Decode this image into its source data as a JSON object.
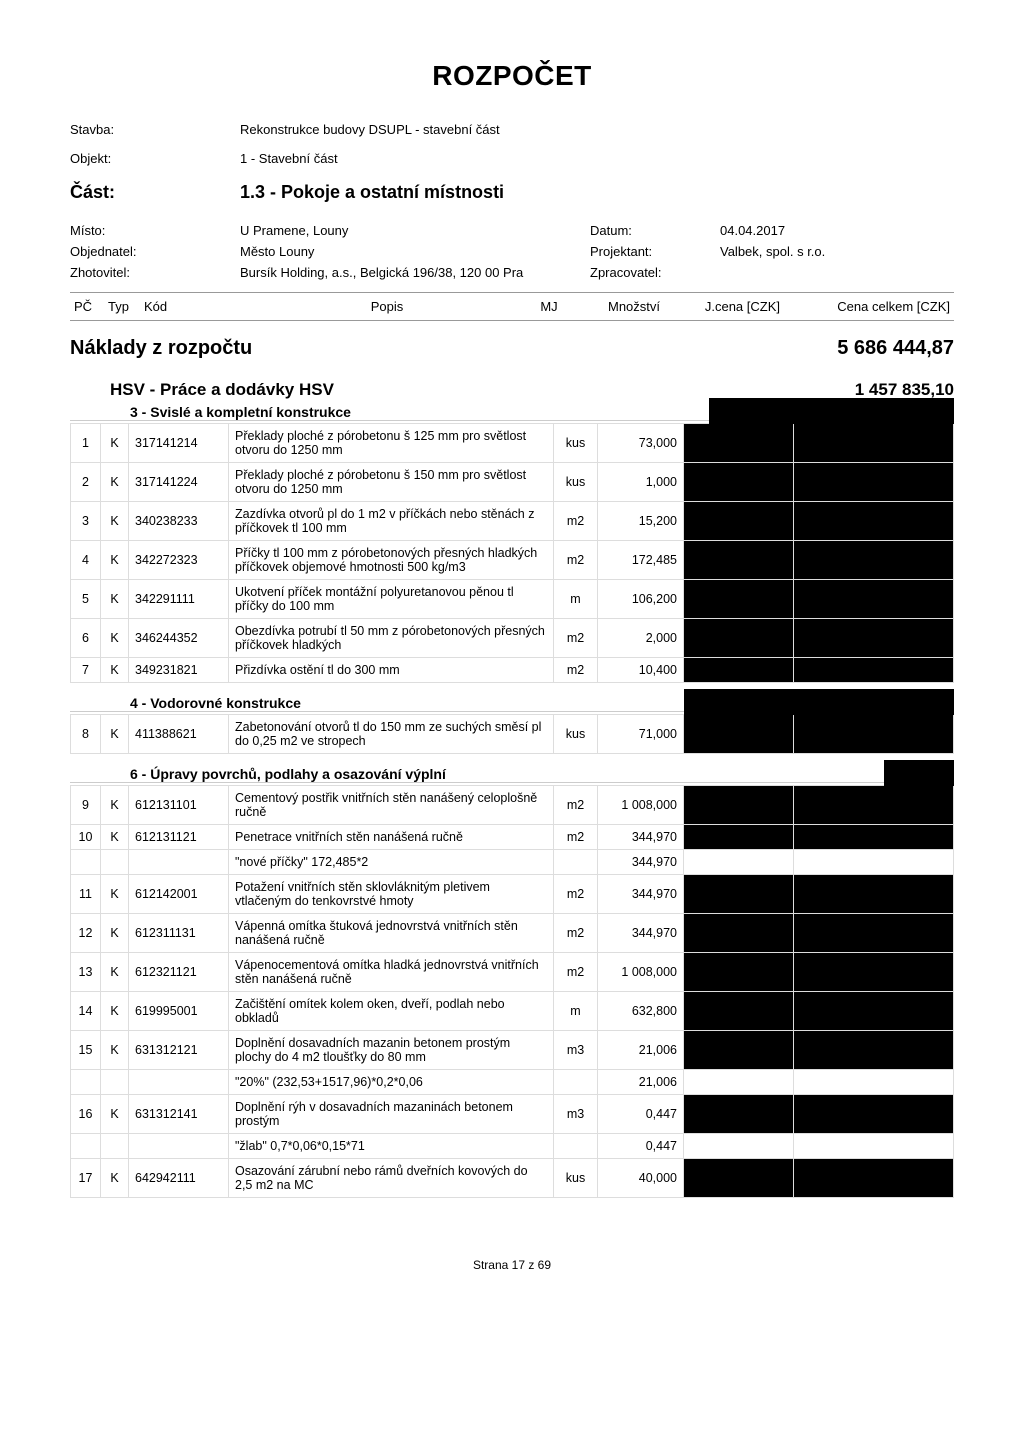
{
  "title": "ROZPOČET",
  "labels": {
    "stavba": "Stavba:",
    "objekt": "Objekt:",
    "cast": "Část:",
    "misto": "Místo:",
    "datum": "Datum:",
    "objednatel": "Objednatel:",
    "zhotovitel": "Zhotovitel:",
    "projektant": "Projektant:",
    "zpracovatel": "Zpracovatel:"
  },
  "header": {
    "stavba": "Rekonstrukce budovy DSUPL - stavební část",
    "objekt": "1 - Stavební část",
    "cast": "1.3 - Pokoje a ostatní místnosti",
    "misto": "U Pramene, Louny",
    "datum": "04.04.2017",
    "objednatel": "Město Louny",
    "projektant": "Valbek, spol. s r.o.",
    "zhotovitel": "Bursík Holding, a.s., Belgická 196/38, 120 00 Pra",
    "zpracovatel": ""
  },
  "columns": {
    "pc": "PČ",
    "typ": "Typ",
    "kod": "Kód",
    "popis": "Popis",
    "mj": "MJ",
    "mnozstvi": "Množství",
    "jcena": "J.cena [CZK]",
    "celkem": "Cena celkem [CZK]"
  },
  "grand": {
    "label": "Náklady z rozpočtu",
    "value": "5 686 444,87"
  },
  "hsv": {
    "label": "HSV - Práce a dodávky HSV",
    "value": "1 457 835,10"
  },
  "groups": [
    {
      "title": "3 - Svislé a kompletní konstrukce",
      "redact_width": 245,
      "rows": [
        {
          "pc": "1",
          "typ": "K",
          "kod": "317141214",
          "popis": "Překlady ploché z pórobetonu š 125 mm pro světlost otvoru do 1250 mm",
          "mj": "kus",
          "mn": "73,000"
        },
        {
          "pc": "2",
          "typ": "K",
          "kod": "317141224",
          "popis": "Překlady ploché z pórobetonu š 150 mm pro světlost otvoru do 1250 mm",
          "mj": "kus",
          "mn": "1,000"
        },
        {
          "pc": "3",
          "typ": "K",
          "kod": "340238233",
          "popis": "Zazdívka otvorů pl do 1 m2 v příčkách nebo stěnách z příčkovek tl 100 mm",
          "mj": "m2",
          "mn": "15,200"
        },
        {
          "pc": "4",
          "typ": "K",
          "kod": "342272323",
          "popis": "Příčky tl 100 mm z pórobetonových přesných hladkých příčkovek objemové hmotnosti 500 kg/m3",
          "mj": "m2",
          "mn": "172,485"
        },
        {
          "pc": "5",
          "typ": "K",
          "kod": "342291111",
          "popis": "Ukotvení příček montážní polyuretanovou pěnou tl příčky do 100 mm",
          "mj": "m",
          "mn": "106,200"
        },
        {
          "pc": "6",
          "typ": "K",
          "kod": "346244352",
          "popis": "Obezdívka potrubí tl 50 mm z pórobetonových přesných příčkovek hladkých",
          "mj": "m2",
          "mn": "2,000"
        },
        {
          "pc": "7",
          "typ": "K",
          "kod": "349231821",
          "popis": "Přizdívka ostění tl do 300 mm",
          "mj": "m2",
          "mn": "10,400"
        }
      ]
    },
    {
      "title": "4 - Vodorovné konstrukce",
      "redact_width": 270,
      "rows": [
        {
          "pc": "8",
          "typ": "K",
          "kod": "411388621",
          "popis": "Zabetonování otvorů tl do 150 mm ze suchých směsí pl do 0,25 m2 ve stropech",
          "mj": "kus",
          "mn": "71,000"
        }
      ]
    },
    {
      "title": "6 - Úpravy povrchů, podlahy a osazování výplní",
      "redact_width": 70,
      "rows": [
        {
          "pc": "9",
          "typ": "K",
          "kod": "612131101",
          "popis": "Cementový postřik vnitřních stěn nanášený celoplošně ručně",
          "mj": "m2",
          "mn": "1 008,000"
        },
        {
          "pc": "10",
          "typ": "K",
          "kod": "612131121",
          "popis": "Penetrace vnitřních stěn nanášená ručně",
          "mj": "m2",
          "mn": "344,970"
        },
        {
          "note": true,
          "popis": "\"nové příčky\" 172,485*2",
          "mn": "344,970"
        },
        {
          "pc": "11",
          "typ": "K",
          "kod": "612142001",
          "popis": "Potažení vnitřních stěn sklovláknitým pletivem vtlačeným do tenkovrstvé hmoty",
          "mj": "m2",
          "mn": "344,970"
        },
        {
          "pc": "12",
          "typ": "K",
          "kod": "612311131",
          "popis": "Vápenná omítka štuková jednovrstvá vnitřních stěn nanášená ručně",
          "mj": "m2",
          "mn": "344,970"
        },
        {
          "pc": "13",
          "typ": "K",
          "kod": "612321121",
          "popis": "Vápenocementová omítka hladká jednovrstvá vnitřních stěn nanášená ručně",
          "mj": "m2",
          "mn": "1 008,000"
        },
        {
          "pc": "14",
          "typ": "K",
          "kod": "619995001",
          "popis": "Začištění omítek kolem oken, dveří, podlah nebo obkladů",
          "mj": "m",
          "mn": "632,800"
        },
        {
          "pc": "15",
          "typ": "K",
          "kod": "631312121",
          "popis": "Doplnění dosavadních mazanin betonem prostým plochy do 4 m2 tloušťky do 80 mm",
          "mj": "m3",
          "mn": "21,006"
        },
        {
          "note": true,
          "popis": "\"20%\" (232,53+1517,96)*0,2*0,06",
          "mn": "21,006"
        },
        {
          "pc": "16",
          "typ": "K",
          "kod": "631312141",
          "popis": "Doplnění rýh v dosavadních mazaninách betonem prostým",
          "mj": "m3",
          "mn": "0,447"
        },
        {
          "note": true,
          "popis": "\"žlab\" 0,7*0,06*0,15*71",
          "mn": "0,447"
        },
        {
          "pc": "17",
          "typ": "K",
          "kod": "642942111",
          "popis": "Osazování zárubní nebo rámů dveřních kovových do 2,5 m2 na MC",
          "mj": "kus",
          "mn": "40,000"
        }
      ]
    }
  ],
  "footer": "Strana 17 z 69",
  "colors": {
    "redact": "#000000",
    "border": "#dddddd",
    "header_border": "#999999",
    "background": "#ffffff"
  }
}
